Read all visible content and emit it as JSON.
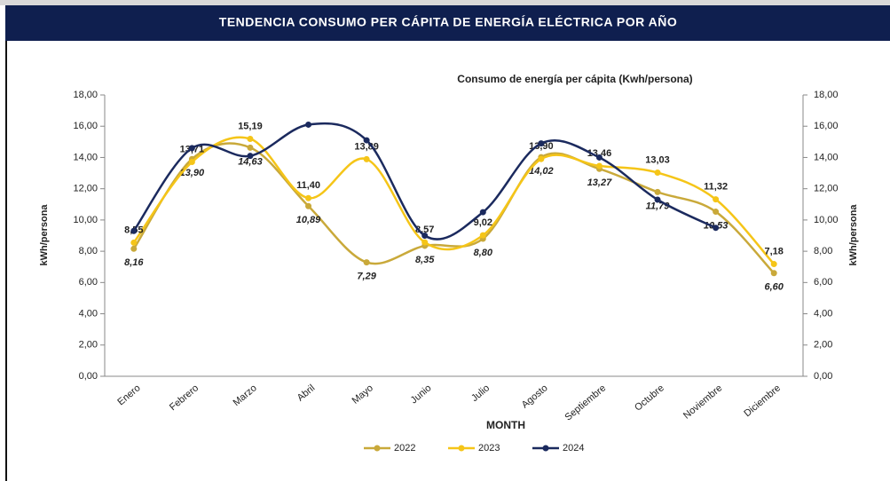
{
  "header": {
    "title": "TENDENCIA CONSUMO PER CÁPITA DE ENERGÍA ELÉCTRICA POR AÑO"
  },
  "chart_data": {
    "type": "line",
    "title": "Consumo de energía per cápita (Kwh/persona)",
    "x_label": "MONTH",
    "y_label": "kWh/persona",
    "y2_label": "kWh/persona",
    "categories": [
      "Enero",
      "Febrero",
      "Marzo",
      "Abril",
      "Mayo",
      "Junio",
      "Julio",
      "Agosto",
      "Septiembre",
      "Octubre",
      "Noviembre",
      "Diciembre"
    ],
    "series": [
      {
        "name": "2022",
        "color": "#c9a93a",
        "values": [
          8.16,
          13.9,
          14.63,
          10.89,
          7.29,
          8.35,
          8.8,
          14.02,
          13.27,
          11.79,
          10.53,
          6.6
        ],
        "value_labels": [
          "8,16",
          "13,90",
          "14,63",
          "10,89",
          "7,29",
          "8,35",
          "8,80",
          "14,02",
          "13,27",
          "11,79",
          "10,53",
          "6,60"
        ]
      },
      {
        "name": "2023",
        "color": "#f5c518",
        "values": [
          8.55,
          13.71,
          15.19,
          11.4,
          13.89,
          8.57,
          9.02,
          13.9,
          13.46,
          13.03,
          11.32,
          7.18
        ],
        "value_labels": [
          "8,55",
          "13,71",
          "15,19",
          "11,40",
          "13,89",
          "8,57",
          "9,02",
          "13,90",
          "13,46",
          "13,03",
          "11,32",
          "7,18"
        ]
      },
      {
        "name": "2024",
        "color": "#1b2a5e",
        "values": [
          9.3,
          14.6,
          14.1,
          16.1,
          15.1,
          9.0,
          10.5,
          14.9,
          14.0,
          11.3,
          9.5,
          null
        ]
      }
    ],
    "ylim": [
      0,
      18
    ],
    "yticks": [
      {
        "value": 0,
        "label": "0,00"
      },
      {
        "value": 2,
        "label": "2,00"
      },
      {
        "value": 4,
        "label": "4,00"
      },
      {
        "value": 6,
        "label": "6,00"
      },
      {
        "value": 8,
        "label": "8,00"
      },
      {
        "value": 10,
        "label": "10,00"
      },
      {
        "value": 12,
        "label": "12,00"
      },
      {
        "value": 14,
        "label": "14,00"
      },
      {
        "value": 16,
        "label": "16,00"
      },
      {
        "value": 18,
        "label": "18,00"
      }
    ],
    "y2lim": [
      0,
      18
    ],
    "y2ticks": [
      {
        "value": 0,
        "label": "0,00"
      },
      {
        "value": 2,
        "label": "2,00"
      },
      {
        "value": 4,
        "label": "4,00"
      },
      {
        "value": 6,
        "label": "6,00"
      },
      {
        "value": 8,
        "label": "8,00"
      },
      {
        "value": 10,
        "label": "10,00"
      },
      {
        "value": 12,
        "label": "12,00"
      },
      {
        "value": 14,
        "label": "14,00"
      },
      {
        "value": 16,
        "label": "16,00"
      },
      {
        "value": 18,
        "label": "18,00"
      }
    ],
    "legend": "bottom"
  }
}
